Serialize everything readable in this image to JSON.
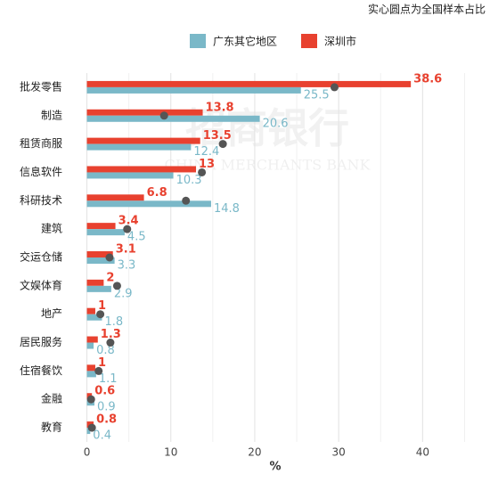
{
  "chart_data": {
    "type": "bar",
    "orientation": "horizontal",
    "annotation": "实心圆点为全国样本占比",
    "xlabel": "%",
    "watermark": [
      "招商银行",
      "CHINA MERCHANTS BANK"
    ],
    "categories": [
      "批发零售",
      "制造",
      "租赁商服",
      "信息软件",
      "科研技术",
      "建筑",
      "交运仓储",
      "文娱体育",
      "地产",
      "居民服务",
      "住宿餐饮",
      "金融",
      "教育"
    ],
    "series": [
      {
        "name": "广东其它地区",
        "color": "#7ab8c8",
        "values": [
          25.5,
          20.6,
          12.4,
          10.3,
          14.8,
          4.5,
          3.3,
          2.9,
          1.8,
          0.8,
          1.1,
          0.9,
          0.4
        ]
      },
      {
        "name": "深圳市",
        "color": "#e8412f",
        "values": [
          38.6,
          13.8,
          13.5,
          13,
          6.8,
          3.4,
          3.1,
          2,
          1,
          1.3,
          1,
          0.6,
          0.8
        ]
      }
    ],
    "points": {
      "color": "#555555",
      "values": [
        29.5,
        9.2,
        16.2,
        13.7,
        11.8,
        4.8,
        2.7,
        3.6,
        1.6,
        2.8,
        1.4,
        0.5,
        0.6
      ]
    },
    "xlim": [
      -0.8,
      47.5
    ],
    "xticks": [
      0,
      10,
      20,
      30,
      40
    ],
    "minor_xticks": [
      5,
      15,
      25,
      35,
      45
    ],
    "grid": true
  }
}
